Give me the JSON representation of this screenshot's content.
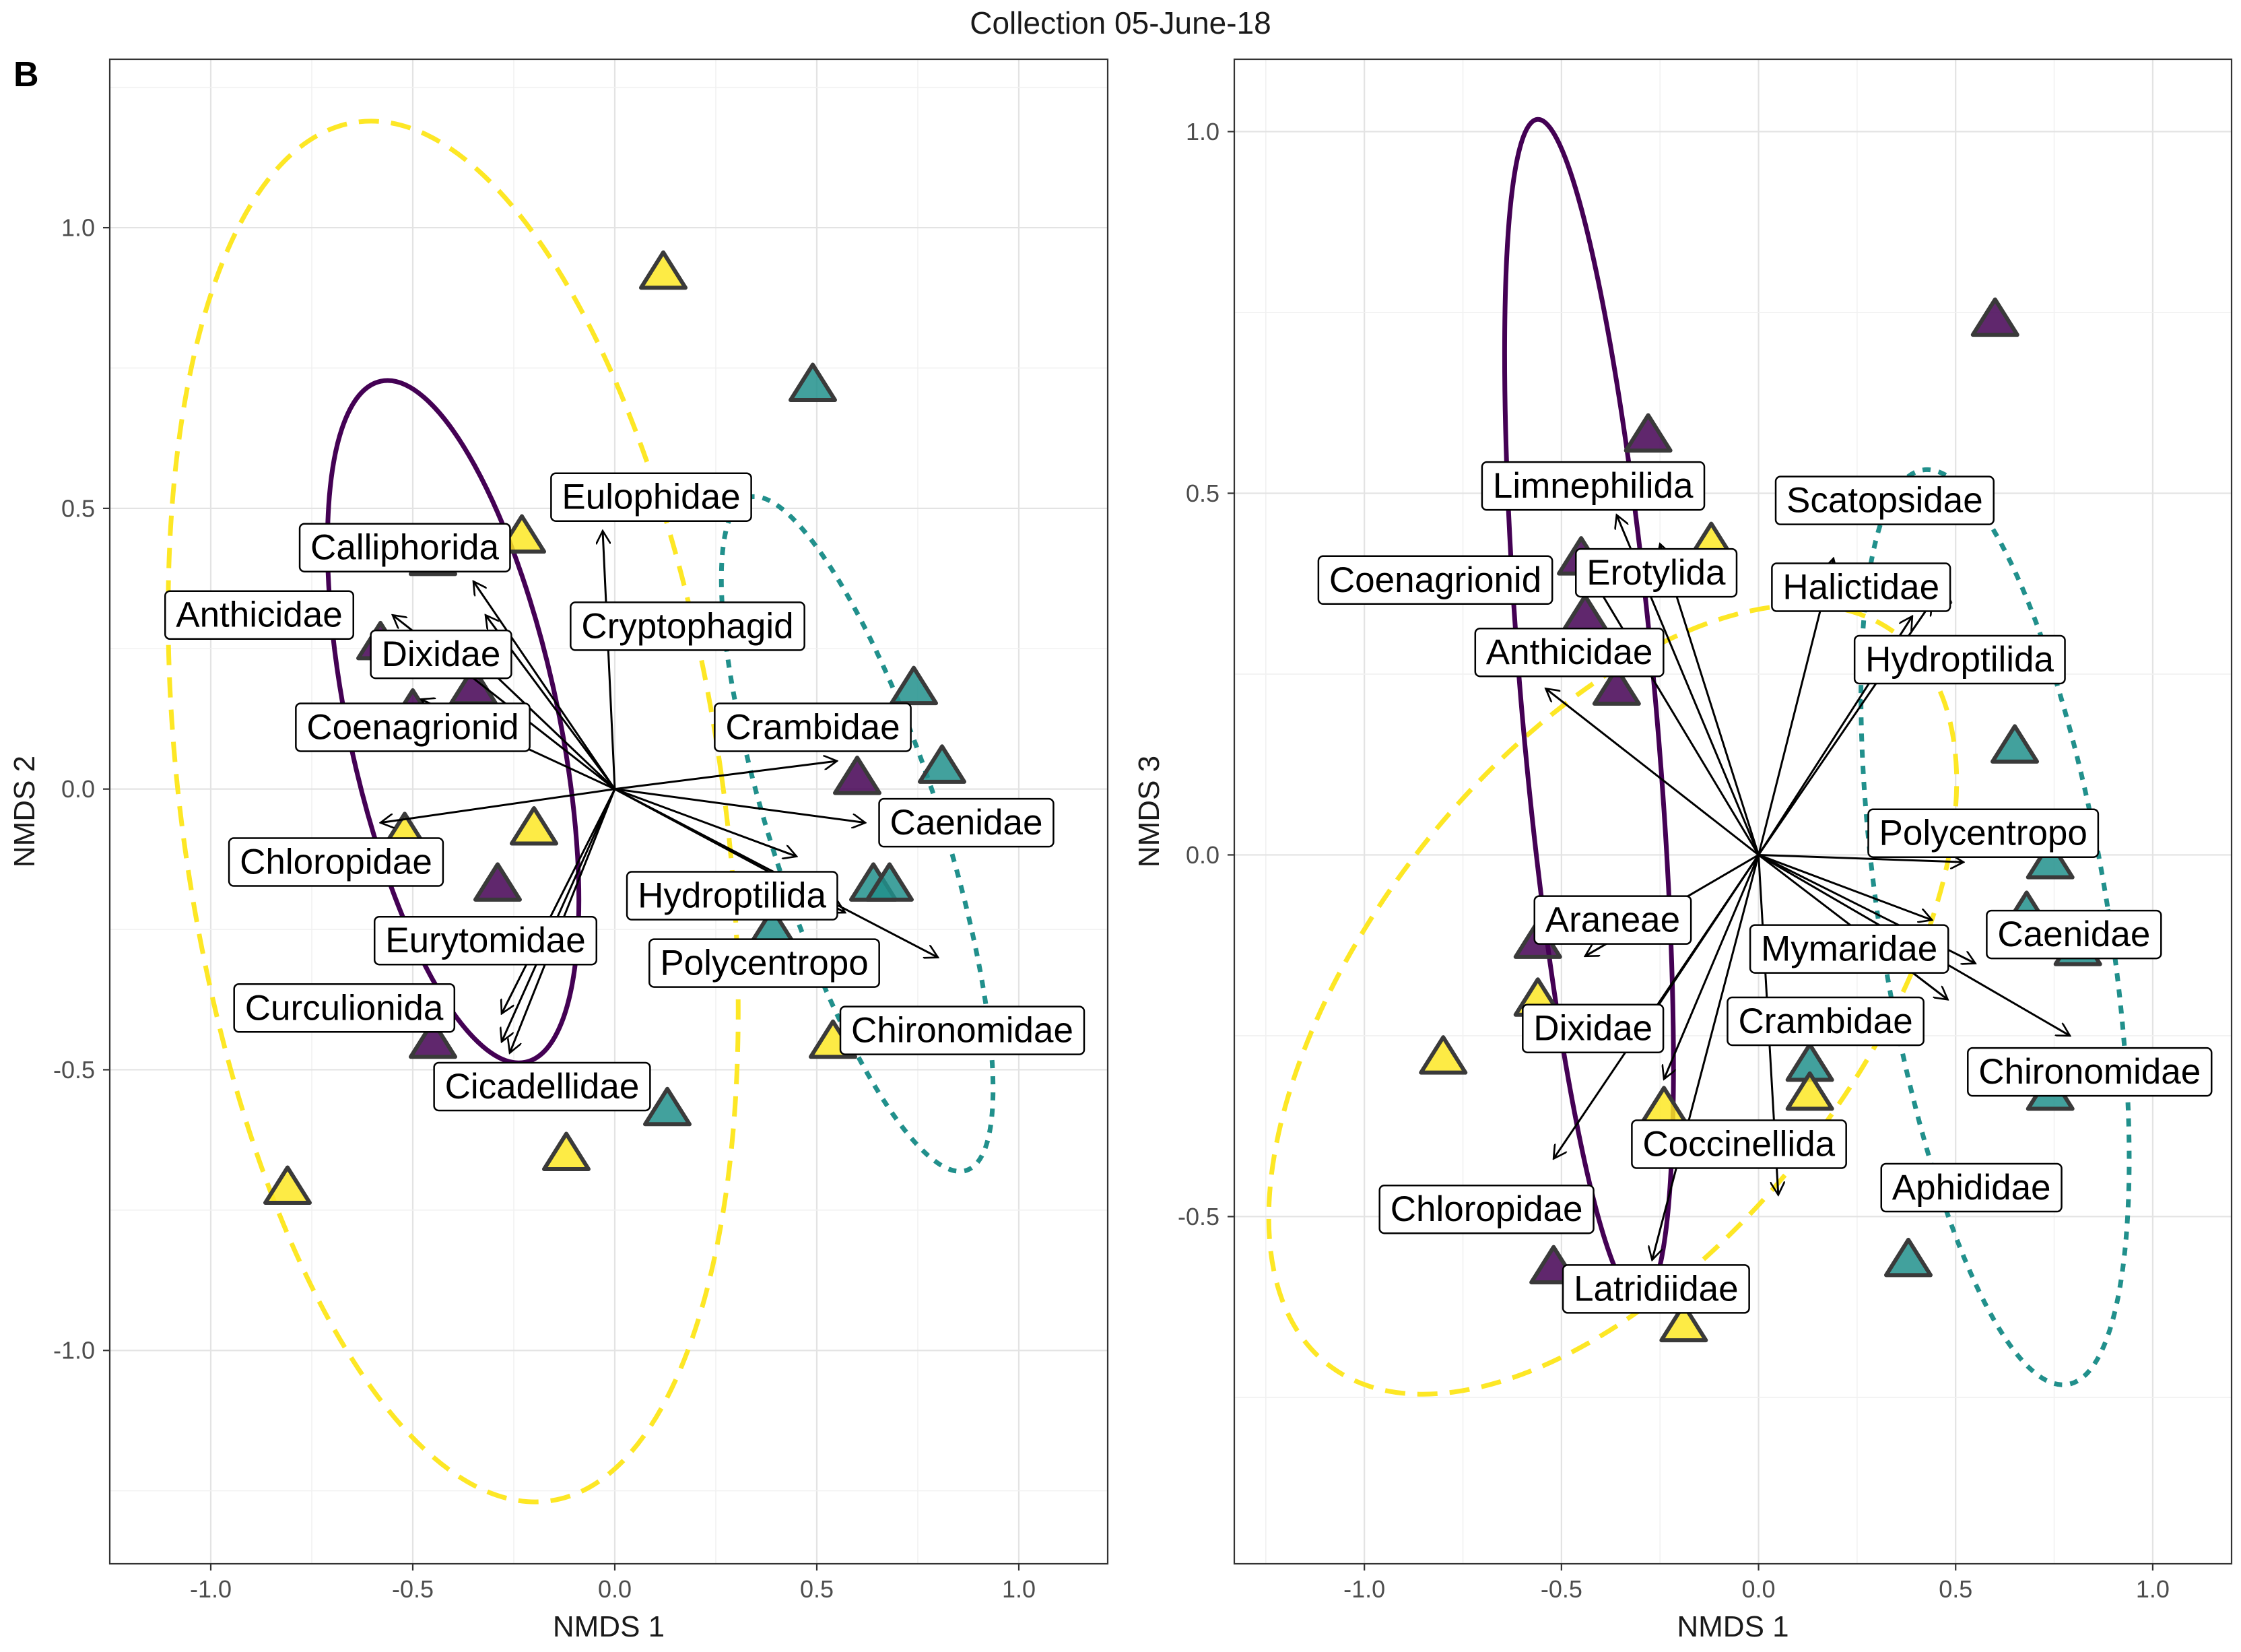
{
  "figure": {
    "title": "Collection 05-June-18",
    "panel_tag": "B"
  },
  "colors": {
    "purple": "#440154",
    "teal": "#21908C",
    "yellow": "#FDE725",
    "arrow": "#000000",
    "grid": "#e3e3e3"
  },
  "chart_data": [
    {
      "type": "scatter",
      "xlabel": "NMDS 1",
      "ylabel": "NMDS 2",
      "xlim": [
        -1.25,
        1.22
      ],
      "ylim": [
        -1.38,
        1.3
      ],
      "xticks": [
        -1.0,
        -0.5,
        0.0,
        0.5,
        1.0
      ],
      "xtick_labels": [
        "-1.0",
        "-0.5",
        "0.0",
        "0.5",
        "1.0"
      ],
      "yticks": [
        -1.0,
        -0.5,
        0.0,
        0.5,
        1.0
      ],
      "ytick_labels": [
        "-1.0",
        "-0.5",
        "0.0",
        "0.5",
        "1.0"
      ],
      "points": [
        {
          "x": 0.12,
          "y": 0.92,
          "group": "yellow"
        },
        {
          "x": 0.49,
          "y": 0.72,
          "group": "teal"
        },
        {
          "x": -0.23,
          "y": 0.45,
          "group": "yellow"
        },
        {
          "x": -0.45,
          "y": 0.41,
          "group": "purple"
        },
        {
          "x": -0.58,
          "y": 0.26,
          "group": "purple"
        },
        {
          "x": -0.35,
          "y": 0.18,
          "group": "purple"
        },
        {
          "x": -0.5,
          "y": 0.14,
          "group": "purple"
        },
        {
          "x": -0.5,
          "y": 0.1,
          "group": "teal"
        },
        {
          "x": 0.74,
          "y": 0.18,
          "group": "teal"
        },
        {
          "x": 0.81,
          "y": 0.04,
          "group": "teal"
        },
        {
          "x": 0.6,
          "y": 0.02,
          "group": "purple"
        },
        {
          "x": 0.74,
          "y": -0.07,
          "group": "teal"
        },
        {
          "x": -0.52,
          "y": -0.08,
          "group": "yellow"
        },
        {
          "x": -0.2,
          "y": -0.07,
          "group": "yellow"
        },
        {
          "x": -0.29,
          "y": -0.17,
          "group": "purple"
        },
        {
          "x": 0.64,
          "y": -0.17,
          "group": "teal"
        },
        {
          "x": 0.68,
          "y": -0.17,
          "group": "teal"
        },
        {
          "x": 0.39,
          "y": -0.25,
          "group": "teal"
        },
        {
          "x": 0.54,
          "y": -0.45,
          "group": "yellow"
        },
        {
          "x": -0.45,
          "y": -0.45,
          "group": "purple"
        },
        {
          "x": 0.13,
          "y": -0.57,
          "group": "teal"
        },
        {
          "x": -0.12,
          "y": -0.65,
          "group": "yellow"
        },
        {
          "x": -0.81,
          "y": -0.71,
          "group": "yellow"
        }
      ],
      "ellipses": [
        {
          "group": "yellow",
          "style": "dashed",
          "cx": -0.4,
          "cy": -0.04,
          "rx": 0.67,
          "ry": 1.24,
          "angle": -8
        },
        {
          "group": "purple",
          "style": "solid",
          "cx": -0.4,
          "cy": 0.12,
          "rx": 0.26,
          "ry": 0.62,
          "angle": -12
        },
        {
          "group": "teal",
          "style": "dotted",
          "cx": 0.6,
          "cy": -0.08,
          "rx": 0.21,
          "ry": 0.63,
          "angle": -18
        }
      ],
      "vectors": [
        {
          "label": "Eulophidae",
          "x": -0.03,
          "y": 0.46,
          "lx": 0.09,
          "ly": 0.52
        },
        {
          "label": "Calliphorida",
          "x": -0.35,
          "y": 0.37,
          "lx": -0.52,
          "ly": 0.43
        },
        {
          "label": "Anthicidae",
          "x": -0.55,
          "y": 0.31,
          "lx": -0.88,
          "ly": 0.31
        },
        {
          "label": "Cryptophagid",
          "x": -0.32,
          "y": 0.31,
          "lx": 0.18,
          "ly": 0.29
        },
        {
          "label": "Dixidae",
          "x": -0.38,
          "y": 0.26,
          "lx": -0.43,
          "ly": 0.24
        },
        {
          "label": "Coenagrionid",
          "x": -0.48,
          "y": 0.16,
          "lx": -0.5,
          "ly": 0.11
        },
        {
          "label": "Crambidae",
          "x": 0.55,
          "y": 0.05,
          "lx": 0.49,
          "ly": 0.11
        },
        {
          "label": "Caenidae",
          "x": 0.62,
          "y": -0.06,
          "lx": 0.87,
          "ly": -0.06
        },
        {
          "label": "Chloropidae",
          "x": -0.58,
          "y": -0.06,
          "lx": -0.69,
          "ly": -0.13
        },
        {
          "label": "Hydroptilida",
          "x": 0.45,
          "y": -0.12,
          "lx": 0.29,
          "ly": -0.19
        },
        {
          "label": "Polycentropo",
          "x": 0.57,
          "y": -0.22,
          "lx": 0.37,
          "ly": -0.31
        },
        {
          "label": "Eurytomidae",
          "x": -0.28,
          "y": -0.4,
          "lx": -0.32,
          "ly": -0.27
        },
        {
          "label": "Curculionida",
          "x": -0.28,
          "y": -0.45,
          "lx": -0.67,
          "ly": -0.39
        },
        {
          "label": "Cicadellidae",
          "x": -0.26,
          "y": -0.47,
          "lx": -0.18,
          "ly": -0.53
        },
        {
          "label": "Chironomidae",
          "x": 0.8,
          "y": -0.3,
          "lx": 0.86,
          "ly": -0.43
        }
      ]
    },
    {
      "type": "scatter",
      "xlabel": "NMDS 1",
      "ylabel": "NMDS 3",
      "xlim": [
        -1.33,
        1.2
      ],
      "ylim": [
        -0.98,
        1.1
      ],
      "xticks": [
        -1.0,
        -0.5,
        0.0,
        0.5,
        1.0
      ],
      "xtick_labels": [
        "-1.0",
        "-0.5",
        "0.0",
        "0.5",
        "1.0"
      ],
      "yticks": [
        -0.5,
        0.0,
        0.5,
        1.0
      ],
      "ytick_labels": [
        "-0.5",
        "0.0",
        "0.5",
        "1.0"
      ],
      "points": [
        {
          "x": 0.6,
          "y": 0.74,
          "group": "purple"
        },
        {
          "x": -0.28,
          "y": 0.58,
          "group": "purple"
        },
        {
          "x": -0.12,
          "y": 0.43,
          "group": "yellow"
        },
        {
          "x": -0.45,
          "y": 0.41,
          "group": "purple"
        },
        {
          "x": 0.43,
          "y": 0.37,
          "group": "teal"
        },
        {
          "x": -0.44,
          "y": 0.33,
          "group": "purple"
        },
        {
          "x": -0.36,
          "y": 0.23,
          "group": "purple"
        },
        {
          "x": 0.65,
          "y": 0.15,
          "group": "teal"
        },
        {
          "x": 0.74,
          "y": -0.01,
          "group": "teal"
        },
        {
          "x": 0.68,
          "y": -0.08,
          "group": "teal"
        },
        {
          "x": 0.81,
          "y": -0.13,
          "group": "teal"
        },
        {
          "x": -0.56,
          "y": -0.12,
          "group": "purple"
        },
        {
          "x": -0.56,
          "y": -0.2,
          "group": "yellow"
        },
        {
          "x": -0.8,
          "y": -0.28,
          "group": "yellow"
        },
        {
          "x": 0.13,
          "y": -0.29,
          "group": "teal"
        },
        {
          "x": 0.13,
          "y": -0.33,
          "group": "yellow"
        },
        {
          "x": -0.24,
          "y": -0.35,
          "group": "yellow"
        },
        {
          "x": 0.74,
          "y": -0.33,
          "group": "teal"
        },
        {
          "x": 0.38,
          "y": -0.56,
          "group": "teal"
        },
        {
          "x": -0.52,
          "y": -0.57,
          "group": "purple"
        },
        {
          "x": -0.19,
          "y": -0.65,
          "group": "yellow"
        }
      ],
      "ellipses": [
        {
          "group": "yellow",
          "style": "dashed",
          "cx": -0.37,
          "cy": -0.2,
          "rx": 0.62,
          "ry": 0.64,
          "angle": 38
        },
        {
          "group": "purple",
          "style": "solid",
          "cx": -0.43,
          "cy": 0.2,
          "rx": 0.17,
          "ry": 0.82,
          "angle": -5
        },
        {
          "group": "teal",
          "style": "dotted",
          "cx": 0.6,
          "cy": -0.1,
          "rx": 0.29,
          "ry": 0.64,
          "angle": -9
        }
      ],
      "vectors": [
        {
          "label": "Limnephilida",
          "x": -0.36,
          "y": 0.47,
          "lx": -0.42,
          "ly": 0.51
        },
        {
          "label": "Scatopsidae",
          "x": 0.19,
          "y": 0.41,
          "lx": 0.32,
          "ly": 0.49
        },
        {
          "label": "Erotylida",
          "x": -0.25,
          "y": 0.43,
          "lx": -0.26,
          "ly": 0.39
        },
        {
          "label": "Coenagrionid",
          "x": -0.43,
          "y": 0.39,
          "lx": -0.82,
          "ly": 0.38
        },
        {
          "label": "Halictidae",
          "x": 0.44,
          "y": 0.35,
          "lx": 0.26,
          "ly": 0.37
        },
        {
          "label": "Anthicidae",
          "x": -0.54,
          "y": 0.23,
          "lx": -0.48,
          "ly": 0.28
        },
        {
          "label": "Hydroptilida",
          "x": 0.39,
          "y": 0.33,
          "lx": 0.51,
          "ly": 0.27
        },
        {
          "label": "Polycentropo",
          "x": 0.52,
          "y": -0.01,
          "lx": 0.57,
          "ly": 0.03
        },
        {
          "label": "Araneae",
          "x": -0.44,
          "y": -0.14,
          "lx": -0.37,
          "ly": -0.09
        },
        {
          "label": "Mymaridae",
          "x": 0.44,
          "y": -0.09,
          "lx": 0.23,
          "ly": -0.13
        },
        {
          "label": "Caenidae",
          "x": 0.55,
          "y": -0.15,
          "lx": 0.8,
          "ly": -0.11
        },
        {
          "label": "Dixidae",
          "x": -0.33,
          "y": -0.27,
          "lx": -0.42,
          "ly": -0.24
        },
        {
          "label": "Crambidae",
          "x": 0.48,
          "y": -0.2,
          "lx": 0.17,
          "ly": -0.23
        },
        {
          "label": "Chironomidae",
          "x": 0.79,
          "y": -0.25,
          "lx": 0.84,
          "ly": -0.3
        },
        {
          "label": "Coccinellida",
          "x": -0.24,
          "y": -0.31,
          "lx": -0.05,
          "ly": -0.4
        },
        {
          "label": "Aphididae",
          "x": 0.05,
          "y": -0.47,
          "lx": 0.54,
          "ly": -0.46
        },
        {
          "label": "Chloropidae",
          "x": -0.52,
          "y": -0.42,
          "lx": -0.69,
          "ly": -0.49
        },
        {
          "label": "Latridiidae",
          "x": -0.27,
          "y": -0.56,
          "lx": -0.26,
          "ly": -0.6
        }
      ]
    }
  ]
}
